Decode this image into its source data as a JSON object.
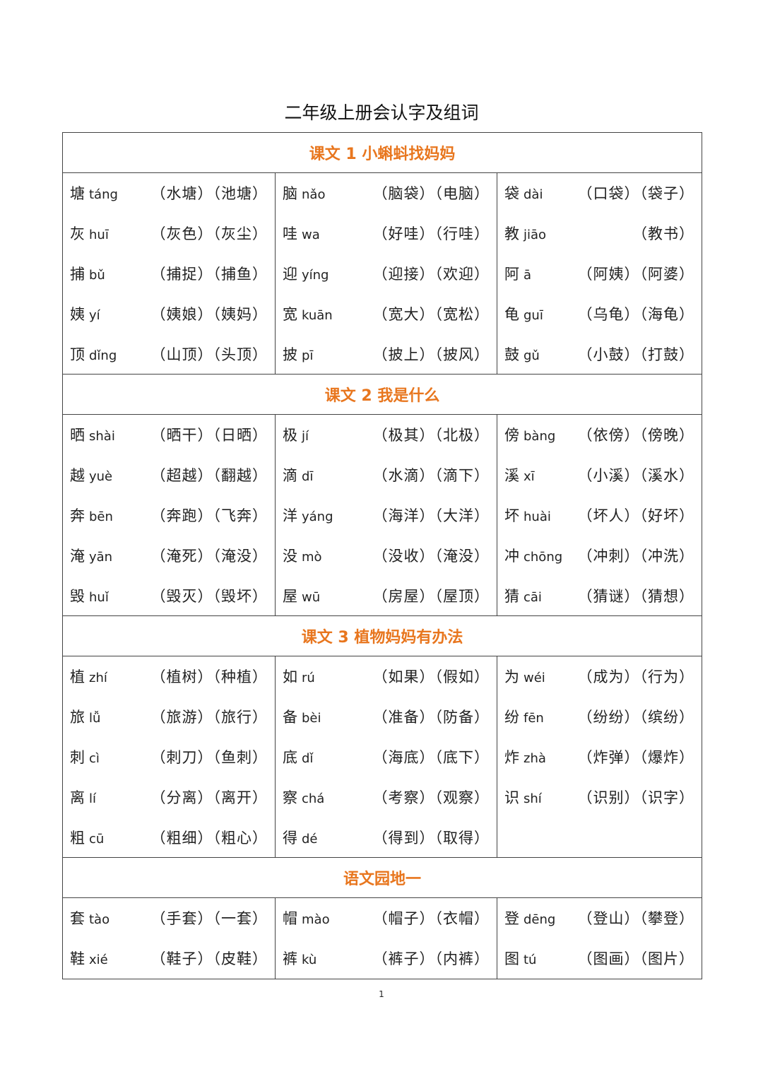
{
  "title": "二年级上册会认字及组词",
  "page_number": "1",
  "accent_color": "#e8761e",
  "sections": [
    {
      "title": "课文 1  小蝌蚪找妈妈",
      "rows": [
        [
          {
            "char": "塘",
            "pinyin": "táng",
            "words": [
              "（水塘）",
              "（池塘）"
            ]
          },
          {
            "char": "脑",
            "pinyin": "nǎo",
            "words": [
              "（脑袋）",
              "（电脑）"
            ]
          },
          {
            "char": "袋",
            "pinyin": "dài",
            "words": [
              "（口袋）",
              "（袋子）"
            ]
          }
        ],
        [
          {
            "char": "灰",
            "pinyin": "huī",
            "words": [
              "（灰色）",
              "（灰尘）"
            ]
          },
          {
            "char": "哇",
            "pinyin": "wa",
            "words": [
              "（好哇）",
              "（行哇）"
            ]
          },
          {
            "char": "教",
            "pinyin": "jiāo",
            "words": [
              "（教书）"
            ]
          }
        ],
        [
          {
            "char": "捕",
            "pinyin": "bǔ",
            "words": [
              "（捕捉）",
              "（捕鱼）"
            ]
          },
          {
            "char": "迎",
            "pinyin": "yíng",
            "words": [
              "（迎接）",
              "（欢迎）"
            ]
          },
          {
            "char": "阿",
            "pinyin": "ā",
            "words": [
              "（阿姨）",
              "（阿婆）"
            ]
          }
        ],
        [
          {
            "char": "姨",
            "pinyin": "yí",
            "words": [
              "（姨娘）",
              "（姨妈）"
            ]
          },
          {
            "char": "宽",
            "pinyin": "kuān",
            "words": [
              "（宽大）",
              "（宽松）"
            ]
          },
          {
            "char": "龟",
            "pinyin": "guī",
            "words": [
              "（乌龟）",
              "（海龟）"
            ]
          }
        ],
        [
          {
            "char": "顶",
            "pinyin": "dǐng",
            "words": [
              "（山顶）",
              "（头顶）"
            ]
          },
          {
            "char": "披",
            "pinyin": "pī",
            "words": [
              "（披上）",
              "（披风）"
            ]
          },
          {
            "char": "鼓",
            "pinyin": "gǔ",
            "words": [
              "（小鼓）",
              "（打鼓）"
            ]
          }
        ]
      ]
    },
    {
      "title": "课文 2  我是什么",
      "rows": [
        [
          {
            "char": "晒",
            "pinyin": "shài",
            "words": [
              "（晒干）",
              "（日晒）"
            ]
          },
          {
            "char": "极",
            "pinyin": "jí",
            "words": [
              "（极其）",
              "（北极）"
            ]
          },
          {
            "char": "傍",
            "pinyin": "bàng",
            "words": [
              "（依傍）",
              "（傍晚）"
            ]
          }
        ],
        [
          {
            "char": "越",
            "pinyin": "yuè",
            "words": [
              "（超越）",
              "（翻越）"
            ]
          },
          {
            "char": "滴",
            "pinyin": "dī",
            "words": [
              "（水滴）",
              "（滴下）"
            ]
          },
          {
            "char": "溪",
            "pinyin": "xī",
            "words": [
              "（小溪）",
              "（溪水）"
            ]
          }
        ],
        [
          {
            "char": "奔",
            "pinyin": "bēn",
            "words": [
              "（奔跑）",
              "（飞奔）"
            ]
          },
          {
            "char": "洋",
            "pinyin": "yáng",
            "words": [
              "（海洋）",
              "（大洋）"
            ]
          },
          {
            "char": "坏",
            "pinyin": "huài",
            "words": [
              "（坏人）",
              "（好坏）"
            ]
          }
        ],
        [
          {
            "char": "淹",
            "pinyin": "yān",
            "words": [
              "（淹死）",
              "（淹没）"
            ]
          },
          {
            "char": "没",
            "pinyin": "mò",
            "words": [
              "（没收）",
              "（淹没）"
            ]
          },
          {
            "char": "冲",
            "pinyin": "chōng",
            "words": [
              "（冲刺）",
              "（冲洗）"
            ]
          }
        ],
        [
          {
            "char": "毁",
            "pinyin": "huǐ",
            "words": [
              "（毁灭）",
              "（毁坏）"
            ]
          },
          {
            "char": "屋",
            "pinyin": "wū",
            "words": [
              "（房屋）",
              "（屋顶）"
            ]
          },
          {
            "char": "猜",
            "pinyin": "cāi",
            "words": [
              "（猜谜）",
              "（猜想）"
            ]
          }
        ]
      ]
    },
    {
      "title": "课文 3  植物妈妈有办法",
      "rows": [
        [
          {
            "char": "植",
            "pinyin": "zhí",
            "words": [
              "（植树）",
              "（种植）"
            ]
          },
          {
            "char": "如",
            "pinyin": "rú",
            "words": [
              "（如果）",
              "（假如）"
            ]
          },
          {
            "char": "为",
            "pinyin": "wéi",
            "words": [
              "（成为）",
              "（行为）"
            ]
          }
        ],
        [
          {
            "char": "旅",
            "pinyin": "lǚ",
            "words": [
              "（旅游）",
              "（旅行）"
            ]
          },
          {
            "char": "备",
            "pinyin": "bèi",
            "words": [
              "（准备）",
              "（防备）"
            ]
          },
          {
            "char": "纷",
            "pinyin": "fēn",
            "words": [
              "（纷纷）",
              "（缤纷）"
            ]
          }
        ],
        [
          {
            "char": "刺",
            "pinyin": "cì",
            "words": [
              "（刺刀）",
              "（鱼刺）"
            ]
          },
          {
            "char": "底",
            "pinyin": "dǐ",
            "words": [
              "（海底）",
              "（底下）"
            ]
          },
          {
            "char": "炸",
            "pinyin": "zhà",
            "words": [
              "（炸弹）",
              "（爆炸）"
            ]
          }
        ],
        [
          {
            "char": "离",
            "pinyin": "lí",
            "words": [
              "（分离）",
              "（离开）"
            ]
          },
          {
            "char": "察",
            "pinyin": "chá",
            "words": [
              "（考察）",
              "（观察）"
            ]
          },
          {
            "char": "识",
            "pinyin": "shí",
            "words": [
              "（识别）",
              "（识字）"
            ]
          }
        ],
        [
          {
            "char": "粗",
            "pinyin": "cū",
            "words": [
              "（粗细）",
              "（粗心）"
            ]
          },
          {
            "char": "得",
            "pinyin": "dé",
            "words": [
              "（得到）",
              "（取得）"
            ]
          },
          null
        ]
      ]
    },
    {
      "title": "语文园地一",
      "rows": [
        [
          {
            "char": "套",
            "pinyin": "tào",
            "words": [
              "（手套）",
              "（一套）"
            ]
          },
          {
            "char": "帽",
            "pinyin": "mào",
            "words": [
              "（帽子）",
              "（衣帽）"
            ]
          },
          {
            "char": "登",
            "pinyin": "dēng",
            "words": [
              "（登山）",
              "（攀登）"
            ]
          }
        ],
        [
          {
            "char": "鞋",
            "pinyin": "xié",
            "words": [
              "（鞋子）",
              "（皮鞋）"
            ]
          },
          {
            "char": "裤",
            "pinyin": "kù",
            "words": [
              "（裤子）",
              "（内裤）"
            ]
          },
          {
            "char": "图",
            "pinyin": "tú",
            "words": [
              "（图画）",
              "（图片）"
            ]
          }
        ]
      ]
    }
  ]
}
